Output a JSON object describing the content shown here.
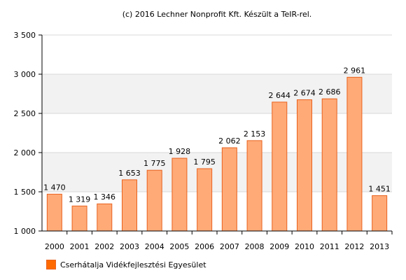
{
  "credit": "(c) 2016 Lechner Nonprofit Kft. Készült a TeIR-rel.",
  "chart_data": {
    "type": "bar",
    "categories": [
      "2000",
      "2001",
      "2002",
      "2003",
      "2004",
      "2005",
      "2006",
      "2007",
      "2008",
      "2009",
      "2010",
      "2011",
      "2012",
      "2013"
    ],
    "values": [
      1470,
      1319,
      1346,
      1653,
      1775,
      1928,
      1795,
      2062,
      2153,
      2644,
      2674,
      2686,
      2961,
      1451
    ],
    "value_labels": [
      "1 470",
      "1 319",
      "1 346",
      "1 653",
      "1 775",
      "1 928",
      "1 795",
      "2 062",
      "2 153",
      "2 644",
      "2 674",
      "2 686",
      "2 961",
      "1 451"
    ],
    "yticks": [
      1000,
      1500,
      2000,
      2500,
      3000,
      3500
    ],
    "ytick_labels": [
      "1 000",
      "1 500",
      "2 000",
      "2 500",
      "3 000",
      "3 500"
    ],
    "ylim": [
      1000,
      3500
    ],
    "series": [
      {
        "name": "Cserhátalja Vidékfejlesztési Egyesület"
      }
    ],
    "bar_fill": "#FFAA77",
    "bar_stroke": "#E8621F",
    "band_color": "#F2F2F2",
    "grid_color": "#D8D8D8",
    "legend_position": "bottom-left"
  }
}
